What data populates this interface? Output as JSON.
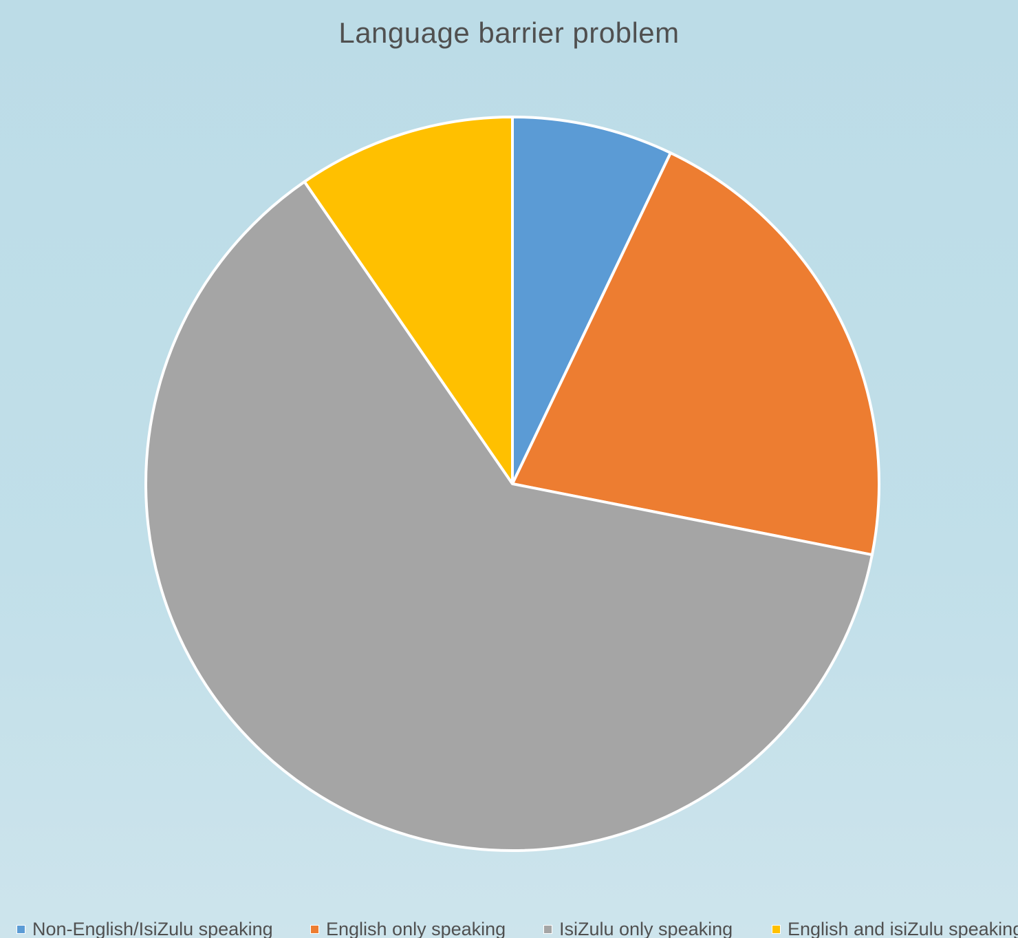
{
  "chart_data": {
    "type": "pie",
    "title": "Language barrier problem",
    "categories": [
      "Non-English/IsiZulu speaking",
      "English only speaking",
      "IsiZulu only speaking",
      "English and isiZulu speaking"
    ],
    "values": [
      7.1,
      21.0,
      62.3,
      9.6
    ],
    "colors": [
      "#5b9bd5",
      "#ed7d31",
      "#a5a5a5",
      "#ffc000"
    ],
    "legend_position": "bottom",
    "start_angle": "12 o'clock, clockwise"
  }
}
